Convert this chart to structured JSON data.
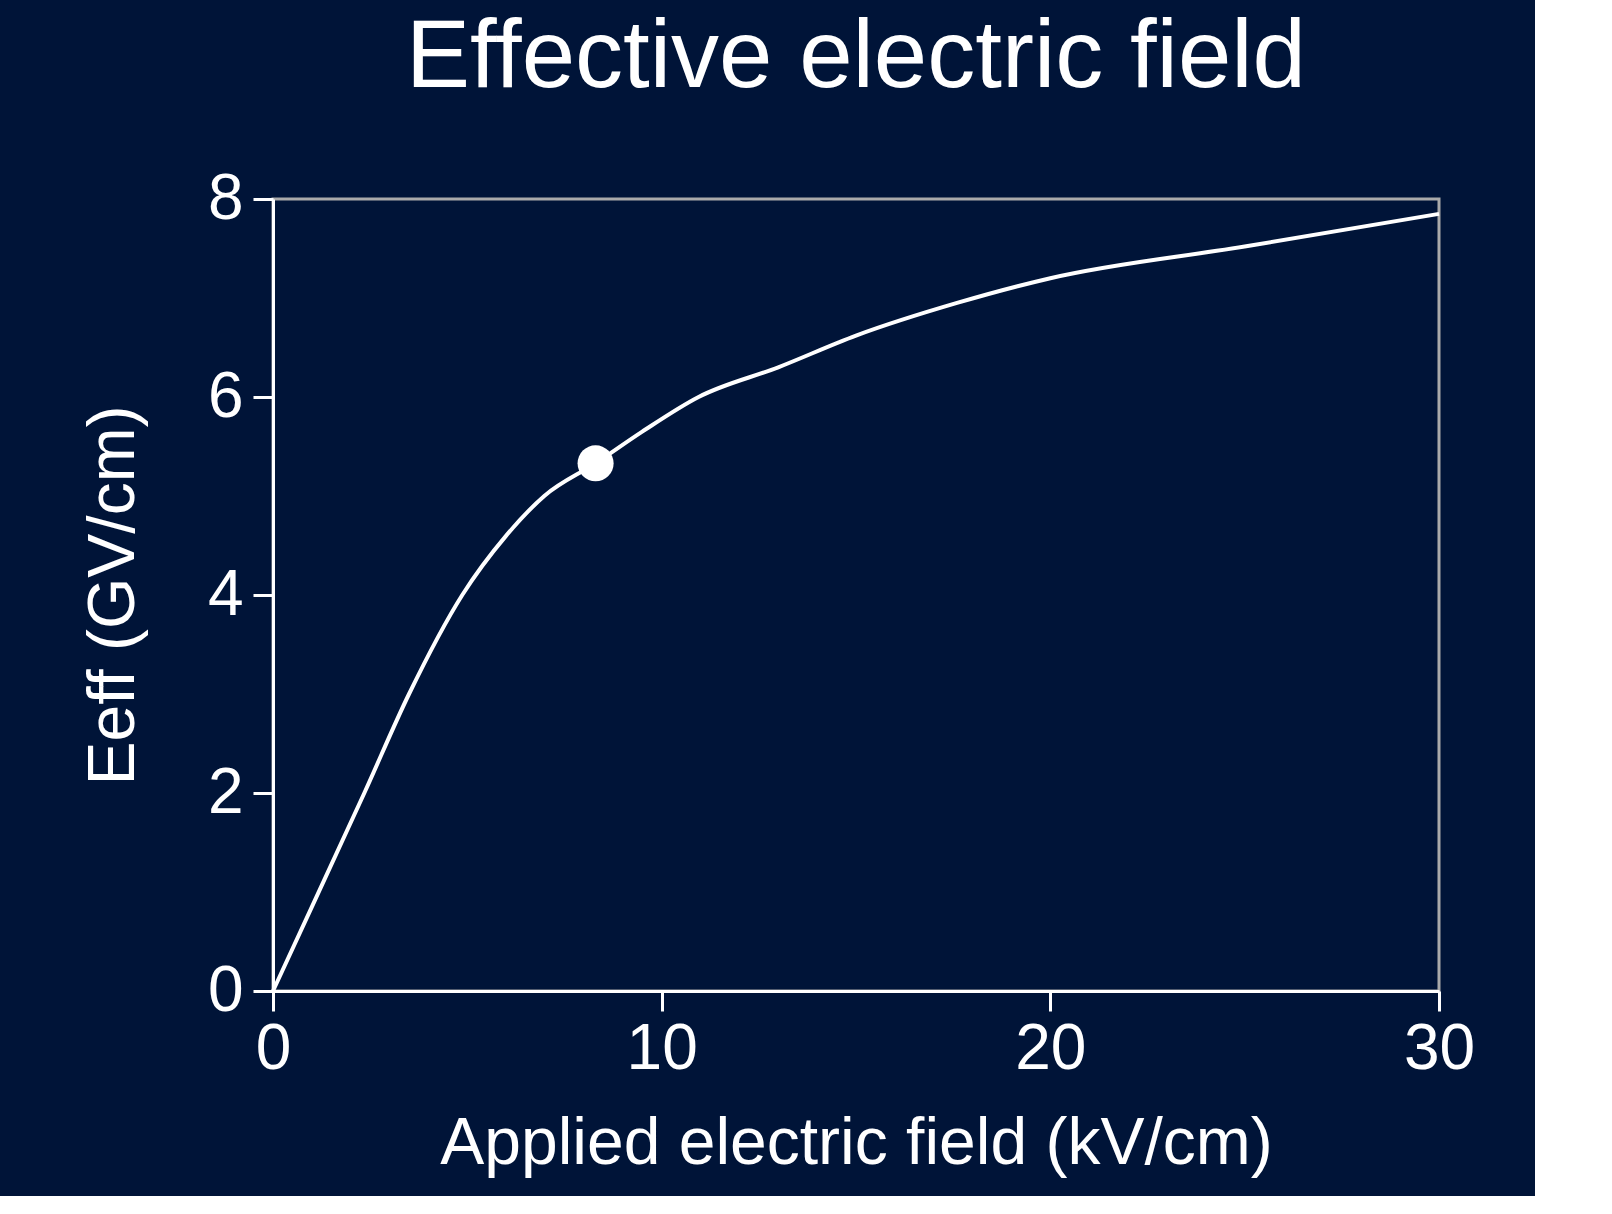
{
  "chart_data": {
    "type": "line",
    "title": "Effective electric field",
    "xlabel": "Applied electric field (kV/cm)",
    "ylabel": "Eeff (GV/cm)",
    "xlim": [
      0,
      30
    ],
    "ylim": [
      0,
      8
    ],
    "xticks": [
      0,
      10,
      20,
      30
    ],
    "yticks": [
      0,
      2,
      4,
      6,
      8
    ],
    "grid": false,
    "legend": false,
    "series": [
      {
        "color": "#ffffff",
        "marker": "none",
        "x": [
          0,
          1,
          2.35,
          3.5,
          4.87,
          6,
          6.98,
          8.3,
          9.5,
          10.95,
          13,
          15,
          17.6,
          20,
          25,
          30
        ],
        "values": [
          0,
          0.85,
          2,
          3.0,
          4,
          4.6,
          5,
          5.33,
          5.65,
          6,
          6.3,
          6.62,
          6.95,
          7.2,
          7.52,
          7.85
        ]
      },
      {
        "type": "scatter",
        "color": "#ffffff",
        "marker": "circle",
        "x": [
          8.3
        ],
        "values": [
          5.33
        ]
      }
    ]
  }
}
